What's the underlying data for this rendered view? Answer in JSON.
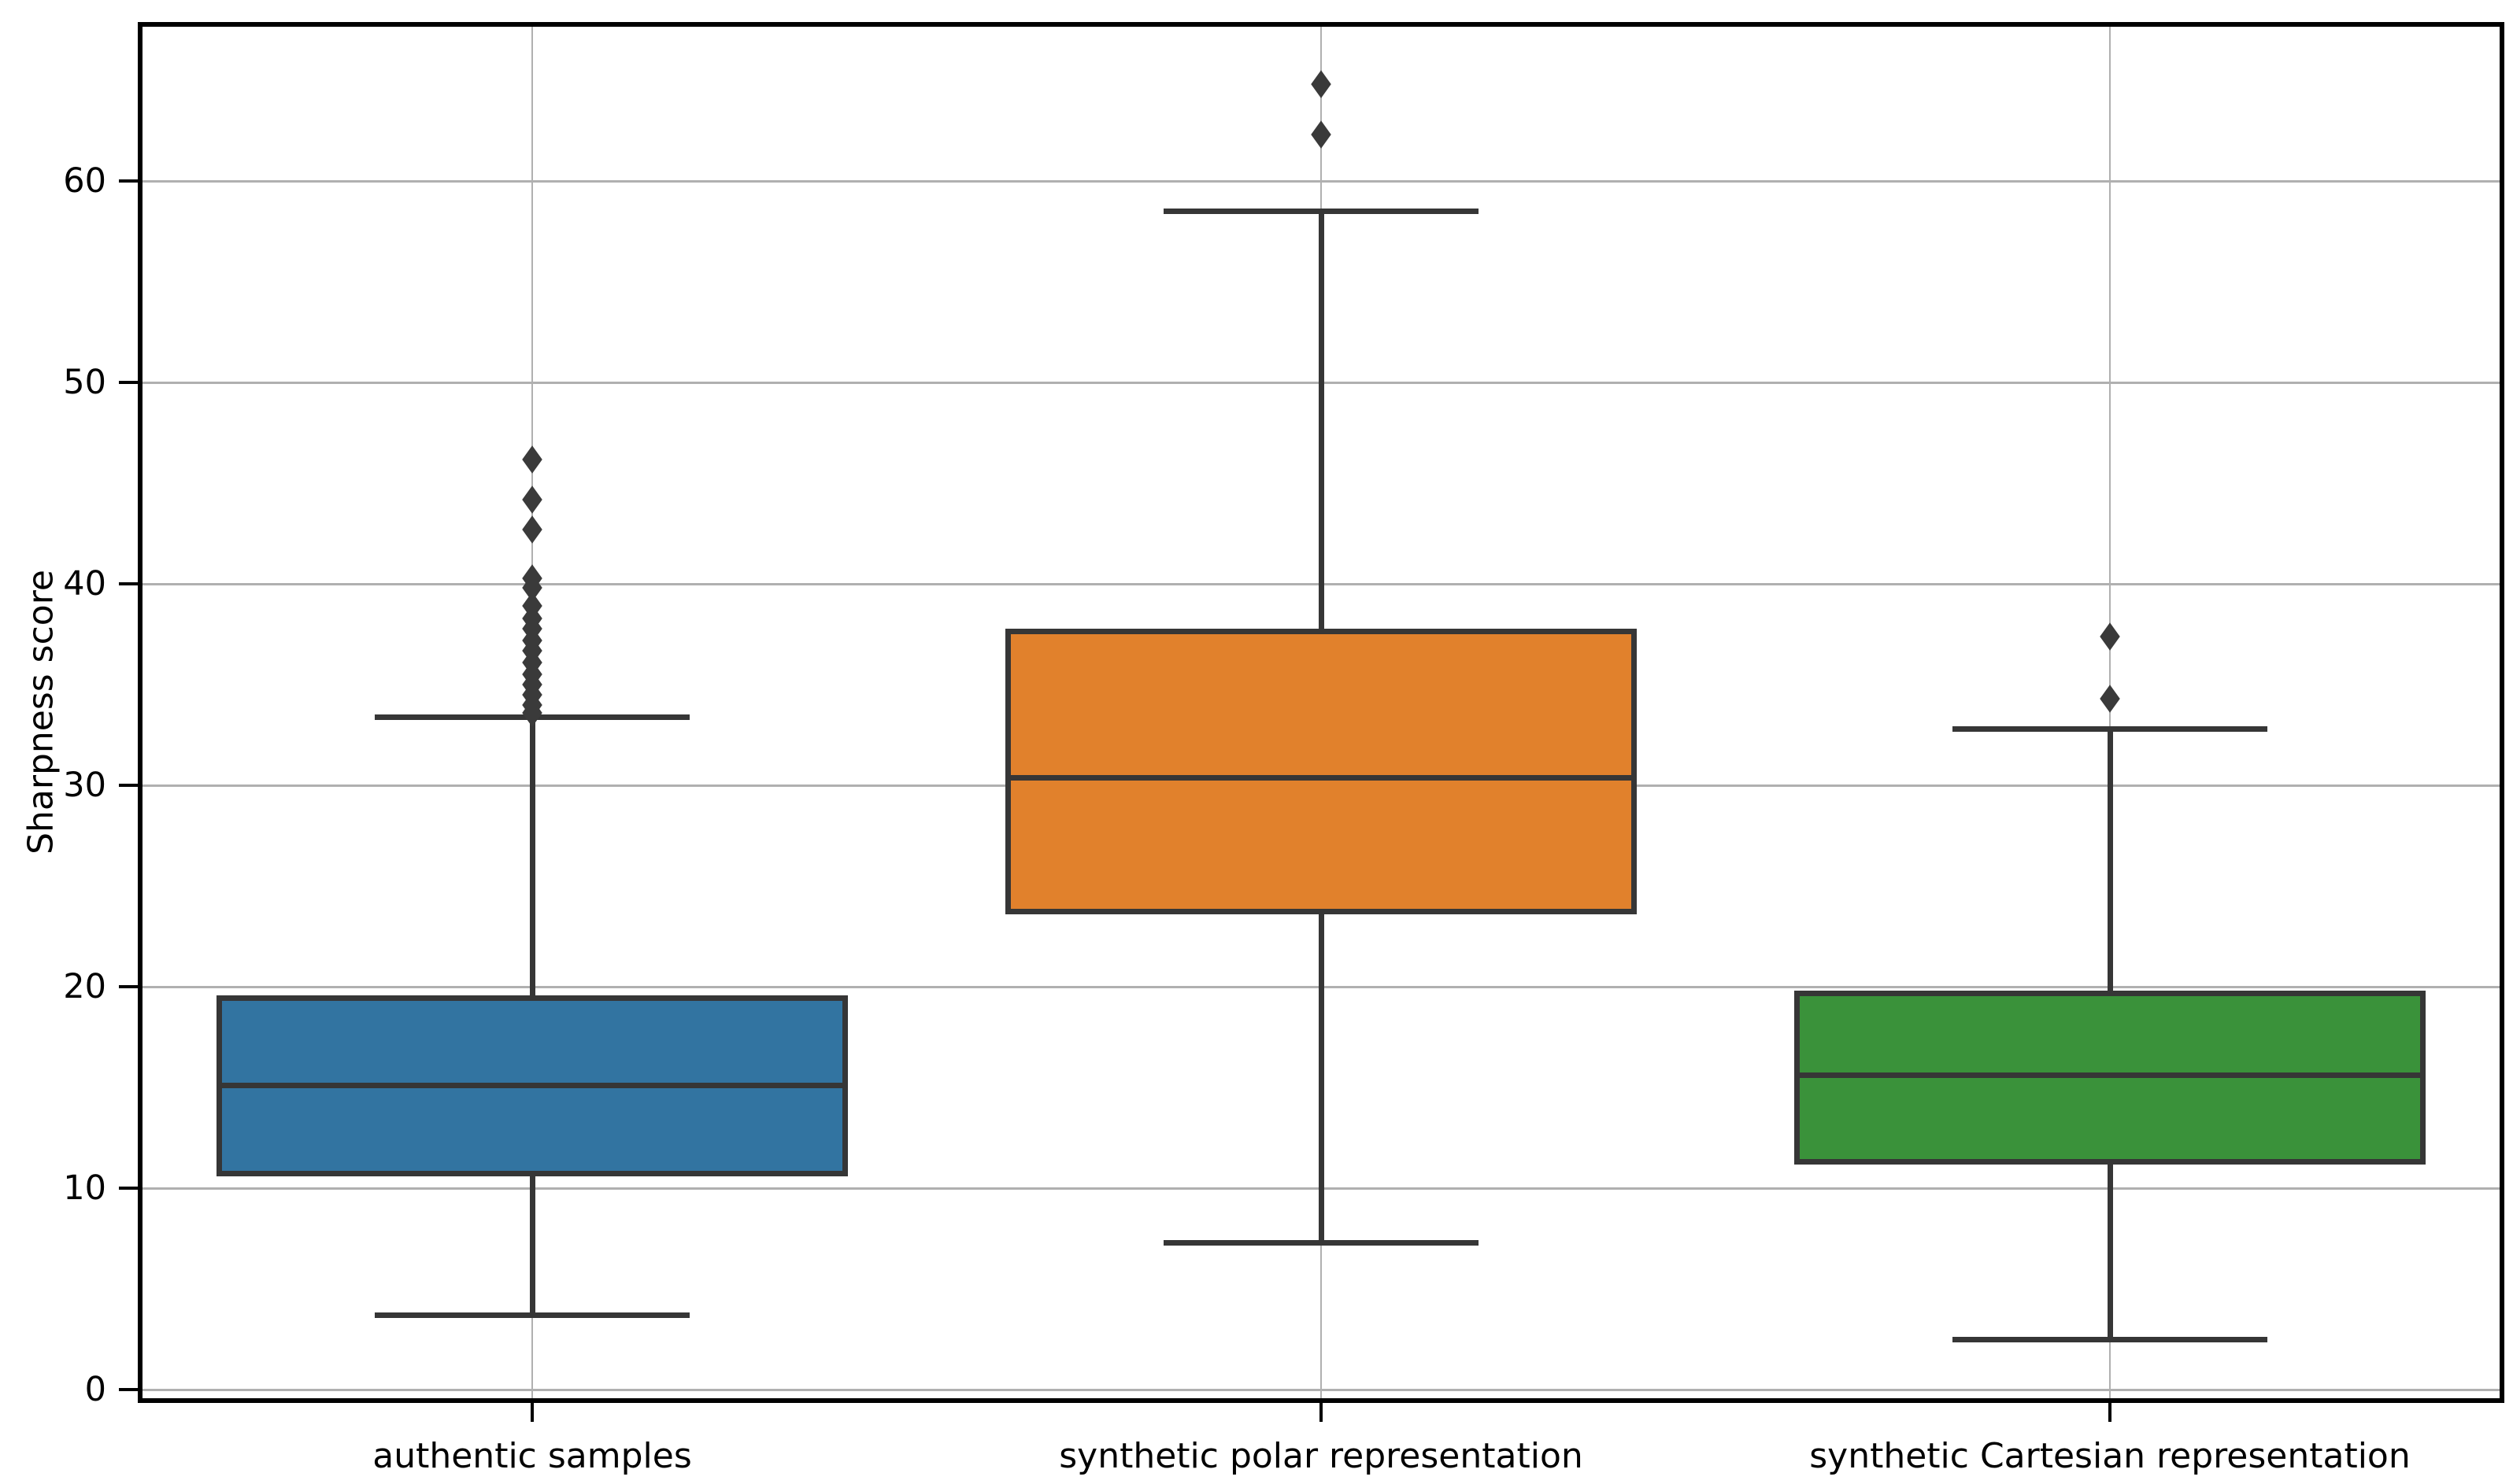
{
  "figure": {
    "background": "#ffffff",
    "text_color": "#000000"
  },
  "chart_data": {
    "type": "boxplot",
    "title": "",
    "xlabel": "",
    "ylabel": "Sharpness score",
    "grid": true,
    "legend": "none",
    "xlim": [
      -0.5,
      2.5
    ],
    "ylim": [
      -0.65,
      67.9
    ],
    "yticks": [
      0,
      10,
      20,
      30,
      40,
      50,
      60
    ],
    "categories": [
      "authentic samples",
      "synthetic polar representation",
      "synthetic Cartesian representation"
    ],
    "box_width": 0.8,
    "cap_width": 0.4,
    "series": [
      {
        "name": "authentic samples",
        "x": 0,
        "color": "#3274a1",
        "q1": 10.6,
        "median": 15.1,
        "q3": 19.6,
        "whisker_low": 3.7,
        "whisker_high": 33.4,
        "outliers": [
          33.6,
          34.0,
          34.5,
          35.0,
          35.5,
          36.1,
          36.7,
          37.2,
          37.8,
          38.3,
          38.9,
          39.8,
          40.3,
          42.7,
          44.2,
          46.2
        ]
      },
      {
        "name": "synthetic polar representation",
        "x": 1,
        "color": "#e1812c",
        "q1": 23.6,
        "median": 30.4,
        "q3": 37.8,
        "whisker_low": 7.3,
        "whisker_high": 58.5,
        "outliers": [
          62.3,
          64.8
        ]
      },
      {
        "name": "synthetic Cartesian representation",
        "x": 2,
        "color": "#3a923a",
        "q1": 11.2,
        "median": 15.6,
        "q3": 19.8,
        "whisker_low": 2.5,
        "whisker_high": 32.8,
        "outliers": [
          34.3,
          37.4
        ]
      }
    ],
    "styles": {
      "box_edge_color": "#363636",
      "flier_color": "#3a3a3a",
      "grid_color": "#b0b0b0",
      "spine_color": "#000000"
    }
  }
}
